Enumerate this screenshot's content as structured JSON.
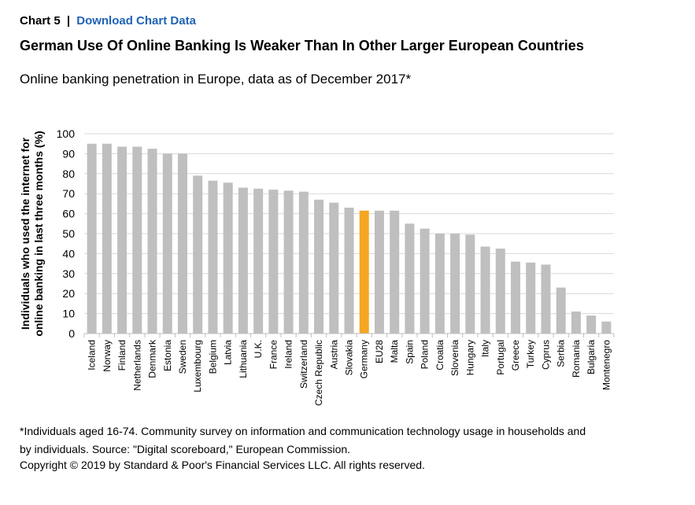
{
  "header": {
    "chart_number": "Chart 5",
    "separator": "|",
    "download_link": "Download Chart Data"
  },
  "footnote": "*Individuals aged 16-74. Community survey on information and communication technology usage in households and by individuals. Source: \"Digital scoreboard,\" European Commission.",
  "copyright": "Copyright © 2019 by Standard & Poor's Financial Services LLC. All rights reserved.",
  "colors": {
    "bar": "#bfbfbf",
    "highlight": "#f5a623",
    "grid": "#d9d9d9",
    "axis": "#bfbfbf"
  },
  "chart_data": {
    "type": "bar",
    "title": "German Use Of Online Banking Is Weaker Than In Other Larger European Countries",
    "subtitle": "Online banking penetration in Europe, data as of December 2017*",
    "xlabel": "",
    "ylabel": "Individuals who used the internet for online banking in last three months (%)",
    "ylim": [
      0,
      100
    ],
    "yticks": [
      0,
      10,
      20,
      30,
      40,
      50,
      60,
      70,
      80,
      90,
      100
    ],
    "grid": true,
    "highlight": "Germany",
    "categories": [
      "Iceland",
      "Norway",
      "Finland",
      "Netherlands",
      "Denmark",
      "Estonia",
      "Sweden",
      "Luxembourg",
      "Belgium",
      "Latvia",
      "Lithuania",
      "U.K.",
      "France",
      "Ireland",
      "Switzerland",
      "Czech Republic",
      "Austria",
      "Slovakia",
      "Germany",
      "EU28",
      "Malta",
      "Spain",
      "Poland",
      "Croatia",
      "Slovenia",
      "Hungary",
      "Italy",
      "Portugal",
      "Greece",
      "Turkey",
      "Cyprus",
      "Serbia",
      "Romania",
      "Bulgaria",
      "Montenegro"
    ],
    "values": [
      95,
      95,
      93.5,
      93.5,
      92.5,
      90,
      90,
      79,
      76.5,
      75.5,
      73,
      72.5,
      72,
      71.5,
      71,
      67,
      65.5,
      63,
      61.5,
      61.5,
      61.5,
      55,
      52.5,
      50,
      50,
      49.5,
      43.5,
      42.5,
      36,
      35.5,
      34.5,
      23,
      11,
      9,
      6
    ]
  }
}
